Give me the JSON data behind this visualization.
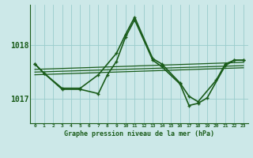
{
  "title": "Graphe pression niveau de la mer (hPa)",
  "background_color": "#cce8e8",
  "grid_color": "#99cccc",
  "line_color": "#1a5c1a",
  "xlim": [
    -0.5,
    23.5
  ],
  "ylim": [
    1016.55,
    1018.75
  ],
  "yticks": [
    1017,
    1018
  ],
  "xticks": [
    0,
    1,
    2,
    3,
    4,
    5,
    6,
    7,
    8,
    9,
    10,
    11,
    12,
    13,
    14,
    15,
    16,
    17,
    18,
    19,
    20,
    21,
    22,
    23
  ],
  "series": [
    {
      "x": [
        0,
        1,
        3,
        5,
        7,
        9,
        10,
        11,
        13,
        14,
        16,
        17,
        18,
        20,
        21,
        22,
        23
      ],
      "y": [
        1017.65,
        1017.48,
        1017.2,
        1017.2,
        1017.45,
        1017.85,
        1018.2,
        1018.52,
        1017.75,
        1017.65,
        1017.3,
        1017.05,
        1016.95,
        1017.35,
        1017.65,
        1017.72,
        1017.72
      ],
      "has_markers": true,
      "lw": 1.2
    },
    {
      "x": [
        0,
        1,
        3,
        5,
        7,
        8,
        9,
        10,
        11,
        13,
        14,
        16,
        17,
        18,
        19,
        21,
        22,
        23
      ],
      "y": [
        1017.65,
        1017.48,
        1017.18,
        1017.18,
        1017.1,
        1017.45,
        1017.7,
        1018.15,
        1018.47,
        1017.72,
        1017.6,
        1017.28,
        1016.88,
        1016.92,
        1017.02,
        1017.62,
        1017.72,
        1017.72
      ],
      "has_markers": true,
      "lw": 1.2
    },
    {
      "x": [
        0,
        23
      ],
      "y": [
        1017.55,
        1017.68
      ],
      "has_markers": false,
      "lw": 0.9
    },
    {
      "x": [
        0,
        23
      ],
      "y": [
        1017.5,
        1017.62
      ],
      "has_markers": false,
      "lw": 0.9
    },
    {
      "x": [
        0,
        23
      ],
      "y": [
        1017.45,
        1017.58
      ],
      "has_markers": false,
      "lw": 0.9
    }
  ],
  "xlabel_color": "#1a5c1a",
  "xlabel_fontsize": 6.0,
  "ytick_fontsize": 7,
  "xtick_fontsize": 4.5
}
